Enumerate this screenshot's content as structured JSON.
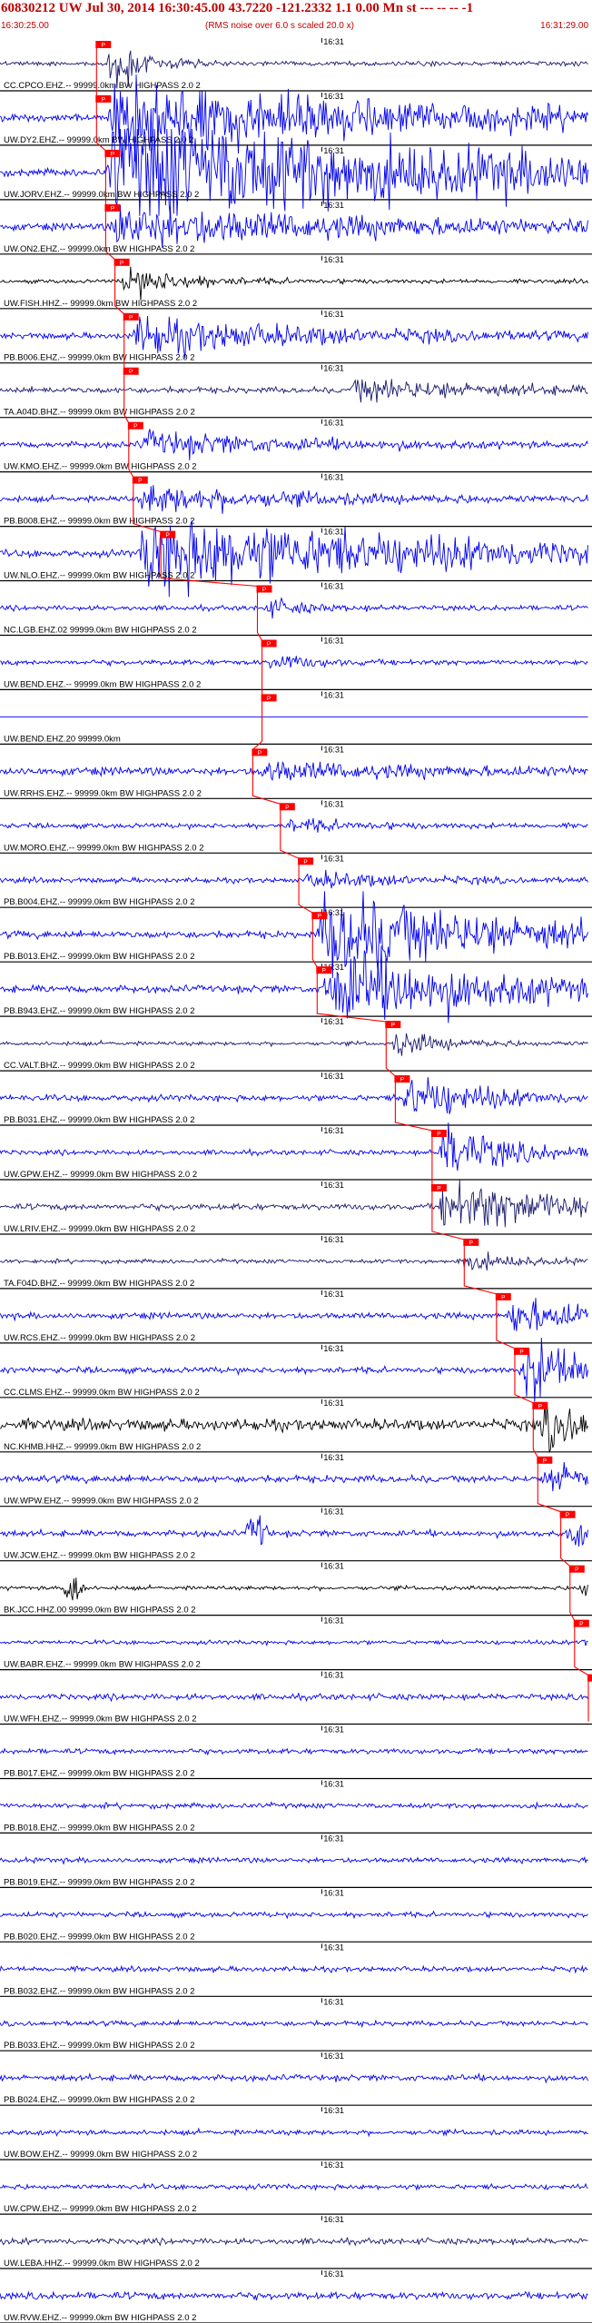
{
  "header": {
    "title": "60830212 UW Jul 30, 2014 16:30:45.00   43.7220  -121.2332  1.1 0.00 Mn st --- -- --  -1",
    "start_time": "16:30:25.00",
    "noise_note": "(RMS noise over 6.0 s scaled 20.0 x)",
    "end_time": "16:31:29.00"
  },
  "colors": {
    "title": "#c00000",
    "trace_blue": "#0000ee",
    "trace_navy": "#1a1a70",
    "trace_black": "#000000",
    "pick_box": "#ff0000",
    "separator": "#000000"
  },
  "chart_data": {
    "type": "line",
    "description_kind": "seismogram record section",
    "x_start": "16:30:25.00",
    "x_end": "16:31:29.00",
    "x_range_seconds": [
      0,
      64
    ],
    "minute_tick_label": "16:31",
    "minute_tick_seconds": 35,
    "pick_label": "P",
    "traces": [
      {
        "label": "CC.CPCO.EHZ.-- 99999.0km BW  HIGHPASS  2.0  2",
        "color": "#1a1a70",
        "pick_seconds": 10.5,
        "event_seconds": 11.5,
        "event_amp": 1.1,
        "event_dur": 3,
        "noise": 0.09,
        "burst_seconds": null
      },
      {
        "label": "UW.DY2.EHZ.-- 99999.0km BW  HIGHPASS  2.0  2",
        "color": "#0000ee",
        "pick_seconds": 10.5,
        "event_seconds": 11.5,
        "event_amp": 1.6,
        "event_dur": 30,
        "noise": 0.14,
        "burst_seconds": null
      },
      {
        "label": "UW.JORV.EHZ.-- 99999.0km BW  HIGHPASS  2.0  2",
        "color": "#0000ee",
        "pick_seconds": 11.5,
        "event_seconds": 11.5,
        "event_amp": 2.4,
        "event_dur": 40,
        "noise": 0.14,
        "burst_seconds": null
      },
      {
        "label": "UW.ON2.EHZ.-- 99999.0km BW  HIGHPASS  2.0  2",
        "color": "#0000ee",
        "pick_seconds": 11.5,
        "event_seconds": 12,
        "event_amp": 0.9,
        "event_dur": 25,
        "noise": 0.14,
        "burst_seconds": null
      },
      {
        "label": "UW.FISH.HHZ.-- 99999.0km BW  HIGHPASS  2.0  2",
        "color": "#000000",
        "pick_seconds": 12.5,
        "event_seconds": 13,
        "event_amp": 0.6,
        "event_dur": 6,
        "noise": 0.08,
        "burst_seconds": null
      },
      {
        "label": "PB.B006.EHZ.-- 99999.0km BW  HIGHPASS  2.0  2",
        "color": "#0000ee",
        "pick_seconds": 13.5,
        "event_seconds": 14,
        "event_amp": 0.7,
        "event_dur": 20,
        "noise": 0.12,
        "burst_seconds": null
      },
      {
        "label": "TA.A04D.BHZ.-- 99999.0km BW  HIGHPASS  2.0  2",
        "color": "#1a1a70",
        "pick_seconds": 13.5,
        "event_seconds": 38,
        "event_amp": 0.5,
        "event_dur": 12,
        "noise": 0.12,
        "burst_seconds": null
      },
      {
        "label": "UW.KMO.EHZ.-- 99999.0km BW  HIGHPASS  2.0  2",
        "color": "#0000ee",
        "pick_seconds": 14,
        "event_seconds": 15,
        "event_amp": 0.45,
        "event_dur": 15,
        "noise": 0.12,
        "burst_seconds": null
      },
      {
        "label": "PB.B008.EHZ.-- 99999.0km BW  HIGHPASS  2.0  2",
        "color": "#0000ee",
        "pick_seconds": 14.5,
        "event_seconds": 15,
        "event_amp": 0.55,
        "event_dur": 15,
        "noise": 0.12,
        "burst_seconds": null
      },
      {
        "label": "UW.NLO.EHZ.-- 99999.0km BW  HIGHPASS  2.0  2",
        "color": "#0000ee",
        "pick_seconds": 17.5,
        "event_seconds": 15,
        "event_amp": 1.6,
        "event_dur": 30,
        "noise": 0.14,
        "burst_seconds": null
      },
      {
        "label": "NC.LGB.EHZ.02 99999.0km BW  HIGHPASS  2.0  2",
        "color": "#0000ee",
        "pick_seconds": 28,
        "event_seconds": 28.5,
        "event_amp": 0.3,
        "event_dur": 4,
        "noise": 0.1,
        "burst_seconds": null
      },
      {
        "label": "UW.BEND.EHZ.-- 99999.0km BW  HIGHPASS  2.0  2",
        "color": "#0000ee",
        "pick_seconds": 28.5,
        "event_seconds": 29,
        "event_amp": 0.3,
        "event_dur": 4,
        "noise": 0.1,
        "burst_seconds": null
      },
      {
        "label": "UW.BEND.EHZ.20 99999.0km",
        "color": "#0000ee",
        "pick_seconds": 28.5,
        "event_seconds": 29,
        "event_amp": 0.0,
        "event_dur": 1,
        "noise": 0.0,
        "burst_seconds": null
      },
      {
        "label": "UW.RRHS.EHZ.-- 99999.0km BW  HIGHPASS  2.0  2",
        "color": "#0000ee",
        "pick_seconds": 27.5,
        "event_seconds": 28,
        "event_amp": 0.35,
        "event_dur": 14,
        "noise": 0.16,
        "burst_seconds": null
      },
      {
        "label": "UW.MORO.EHZ.-- 99999.0km BW  HIGHPASS  2.0  2",
        "color": "#0000ee",
        "pick_seconds": 30.5,
        "event_seconds": 31,
        "event_amp": 0.25,
        "event_dur": 6,
        "noise": 0.1,
        "burst_seconds": null
      },
      {
        "label": "PB.B004.EHZ.-- 99999.0km BW  HIGHPASS  2.0  2",
        "color": "#0000ee",
        "pick_seconds": 32.5,
        "event_seconds": 33,
        "event_amp": 0.3,
        "event_dur": 10,
        "noise": 0.1,
        "burst_seconds": null
      },
      {
        "label": "PB.B013.EHZ.-- 99999.0km BW  HIGHPASS  2.0  2",
        "color": "#0000ee",
        "pick_seconds": 34,
        "event_seconds": 34.5,
        "event_amp": 1.9,
        "event_dur": 18,
        "noise": 0.14,
        "burst_seconds": null
      },
      {
        "label": "PB.B943.EHZ.-- 99999.0km BW  HIGHPASS  2.0  2",
        "color": "#0000ee",
        "pick_seconds": 34.5,
        "event_seconds": 35,
        "event_amp": 1.6,
        "event_dur": 18,
        "noise": 0.14,
        "burst_seconds": null
      },
      {
        "label": "CC.VALT.BHZ.-- 99999.0km BW  HIGHPASS  2.0  2",
        "color": "#1a1a70",
        "pick_seconds": 42,
        "event_seconds": 42.5,
        "event_amp": 0.5,
        "event_dur": 5,
        "noise": 0.08,
        "burst_seconds": null
      },
      {
        "label": "PB.B031.EHZ.-- 99999.0km BW  HIGHPASS  2.0  2",
        "color": "#0000ee",
        "pick_seconds": 43,
        "event_seconds": 43.5,
        "event_amp": 0.9,
        "event_dur": 8,
        "noise": 0.12,
        "burst_seconds": null
      },
      {
        "label": "UW.GPW.EHZ.-- 99999.0km BW  HIGHPASS  2.0  2",
        "color": "#0000ee",
        "pick_seconds": 47,
        "event_seconds": 47.5,
        "event_amp": 1.3,
        "event_dur": 6,
        "noise": 0.1,
        "burst_seconds": null
      },
      {
        "label": "UW.LRIV.EHZ.-- 99999.0km BW  HIGHPASS  2.0  2",
        "color": "#1a1a70",
        "pick_seconds": 47,
        "event_seconds": 47.5,
        "event_amp": 1.0,
        "event_dur": 16,
        "noise": 0.12,
        "burst_seconds": null
      },
      {
        "label": "TA.F04D.BHZ.-- 99999.0km BW  HIGHPASS  2.0  2",
        "color": "#1a1a70",
        "pick_seconds": 50.5,
        "event_seconds": 49.5,
        "event_amp": 0.35,
        "event_dur": 6,
        "noise": 0.08,
        "burst_seconds": null
      },
      {
        "label": "UW.RCS.EHZ.-- 99999.0km BW  HIGHPASS  2.0  2",
        "color": "#0000ee",
        "pick_seconds": 54,
        "event_seconds": 55,
        "event_amp": 0.7,
        "event_dur": 9,
        "noise": 0.12,
        "burst_seconds": null
      },
      {
        "label": "CC.CLMS.EHZ.-- 99999.0km BW  HIGHPASS  2.0  2",
        "color": "#0000ee",
        "pick_seconds": 56,
        "event_seconds": 56.5,
        "event_amp": 1.3,
        "event_dur": 8,
        "noise": 0.12,
        "burst_seconds": null
      },
      {
        "label": "NC.KHMB.HHZ.-- 99999.0km BW  HIGHPASS  2.0  2",
        "color": "#000000",
        "pick_seconds": 58,
        "event_seconds": 58.5,
        "event_amp": 0.9,
        "event_dur": 6,
        "noise": 0.22,
        "burst_seconds": null
      },
      {
        "label": "UW.WPW.EHZ.-- 99999.0km BW  HIGHPASS  2.0  2",
        "color": "#0000ee",
        "pick_seconds": 58.5,
        "event_seconds": 59,
        "event_amp": 0.7,
        "event_dur": 6,
        "noise": 0.14,
        "burst_seconds": null
      },
      {
        "label": "UW.JCW.EHZ.-- 99999.0km BW  HIGHPASS  2.0  2",
        "color": "#0000ee",
        "pick_seconds": 61,
        "event_seconds": 61.5,
        "event_amp": 0.5,
        "event_dur": 3,
        "noise": 0.12,
        "burst_seconds": 28
      },
      {
        "label": "BK.JCC.HHZ.00 99999.0km BW  HIGHPASS  2.0  2",
        "color": "#000000",
        "pick_seconds": 62,
        "event_seconds": 62.5,
        "event_amp": 0.3,
        "event_dur": 2,
        "noise": 0.08,
        "burst_seconds": 8
      },
      {
        "label": "UW.BABR.EHZ.-- 99999.0km BW  HIGHPASS  2.0  2",
        "color": "#0000ee",
        "pick_seconds": 62.5,
        "event_seconds": 63,
        "event_amp": 0.2,
        "event_dur": 2,
        "noise": 0.08,
        "burst_seconds": null
      },
      {
        "label": "UW.WFH.EHZ.-- 99999.0km BW  HIGHPASS  2.0  2",
        "color": "#0000ee",
        "pick_seconds": 64,
        "event_seconds": 64,
        "event_amp": 0.0,
        "event_dur": 1,
        "noise": 0.12,
        "burst_seconds": null
      },
      {
        "label": "PB.B017.EHZ.-- 99999.0km BW  HIGHPASS  2.0  2",
        "color": "#0000ee",
        "pick_seconds": null,
        "event_seconds": null,
        "event_amp": 0.0,
        "event_dur": 1,
        "noise": 0.1,
        "burst_seconds": null
      },
      {
        "label": "PB.B018.EHZ.-- 99999.0km BW  HIGHPASS  2.0  2",
        "color": "#0000ee",
        "pick_seconds": null,
        "event_seconds": null,
        "event_amp": 0.0,
        "event_dur": 1,
        "noise": 0.1,
        "burst_seconds": null
      },
      {
        "label": "PB.B019.EHZ.-- 99999.0km BW  HIGHPASS  2.0  2",
        "color": "#0000ee",
        "pick_seconds": null,
        "event_seconds": null,
        "event_amp": 0.0,
        "event_dur": 1,
        "noise": 0.1,
        "burst_seconds": null
      },
      {
        "label": "PB.B020.EHZ.-- 99999.0km BW  HIGHPASS  2.0  2",
        "color": "#0000ee",
        "pick_seconds": null,
        "event_seconds": null,
        "event_amp": 0.0,
        "event_dur": 1,
        "noise": 0.1,
        "burst_seconds": null
      },
      {
        "label": "PB.B032.EHZ.-- 99999.0km BW  HIGHPASS  2.0  2",
        "color": "#0000ee",
        "pick_seconds": null,
        "event_seconds": null,
        "event_amp": 0.0,
        "event_dur": 1,
        "noise": 0.1,
        "burst_seconds": null
      },
      {
        "label": "PB.B033.EHZ.-- 99999.0km BW  HIGHPASS  2.0  2",
        "color": "#0000ee",
        "pick_seconds": null,
        "event_seconds": null,
        "event_amp": 0.0,
        "event_dur": 1,
        "noise": 0.1,
        "burst_seconds": null
      },
      {
        "label": "PB.B024.EHZ.-- 99999.0km BW  HIGHPASS  2.0  2",
        "color": "#0000ee",
        "pick_seconds": null,
        "event_seconds": null,
        "event_amp": 0.0,
        "event_dur": 1,
        "noise": 0.12,
        "burst_seconds": null
      },
      {
        "label": "UW.BOW.EHZ.-- 99999.0km BW  HIGHPASS  2.0  2",
        "color": "#0000ee",
        "pick_seconds": null,
        "event_seconds": null,
        "event_amp": 0.0,
        "event_dur": 1,
        "noise": 0.1,
        "burst_seconds": null
      },
      {
        "label": "UW.CPW.EHZ.-- 99999.0km BW  HIGHPASS  2.0  2",
        "color": "#0000ee",
        "pick_seconds": null,
        "event_seconds": null,
        "event_amp": 0.0,
        "event_dur": 1,
        "noise": 0.1,
        "burst_seconds": null
      },
      {
        "label": "UW.LEBA.HHZ.-- 99999.0km BW  HIGHPASS  2.0  2",
        "color": "#1a1a70",
        "pick_seconds": null,
        "event_seconds": null,
        "event_amp": 0.0,
        "event_dur": 1,
        "noise": 0.12,
        "burst_seconds": null
      },
      {
        "label": "UW.RVW.EHZ.-- 99999.0km BW  HIGHPASS  2.0  2",
        "color": "#0000ee",
        "pick_seconds": null,
        "event_seconds": null,
        "event_amp": 0.0,
        "event_dur": 1,
        "noise": 0.14,
        "burst_seconds": null
      }
    ]
  }
}
